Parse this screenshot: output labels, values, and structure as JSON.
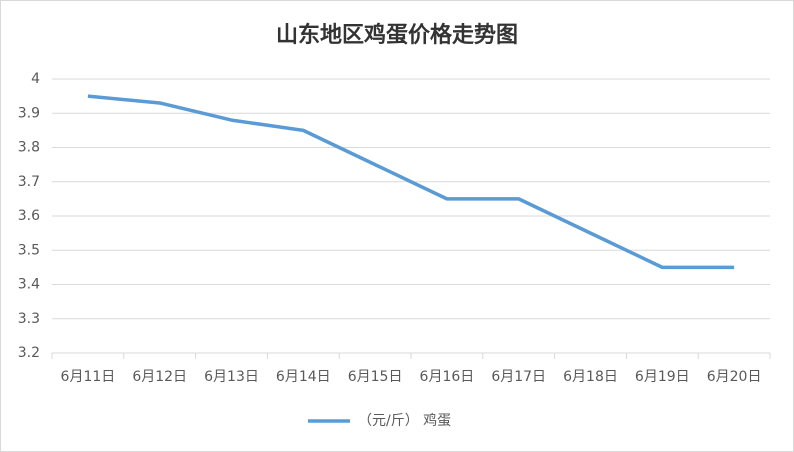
{
  "chart_data": {
    "type": "line",
    "title": "山东地区鸡蛋价格走势图",
    "categories": [
      "6月11日",
      "6月12日",
      "6月13日",
      "6月14日",
      "6月15日",
      "6月16日",
      "6月17日",
      "6月18日",
      "6月19日",
      "6月20日"
    ],
    "series": [
      {
        "name": "（元/斤） 鸡蛋",
        "color": "#5b9bd5",
        "values": [
          3.95,
          3.93,
          3.88,
          3.85,
          3.75,
          3.65,
          3.65,
          3.55,
          3.45,
          3.45
        ]
      }
    ],
    "ylim": [
      3.2,
      4
    ],
    "yticks": [
      3.2,
      3.3,
      3.4,
      3.5,
      3.6,
      3.7,
      3.8,
      3.9,
      4
    ],
    "grid": true,
    "legend": "bottom"
  }
}
